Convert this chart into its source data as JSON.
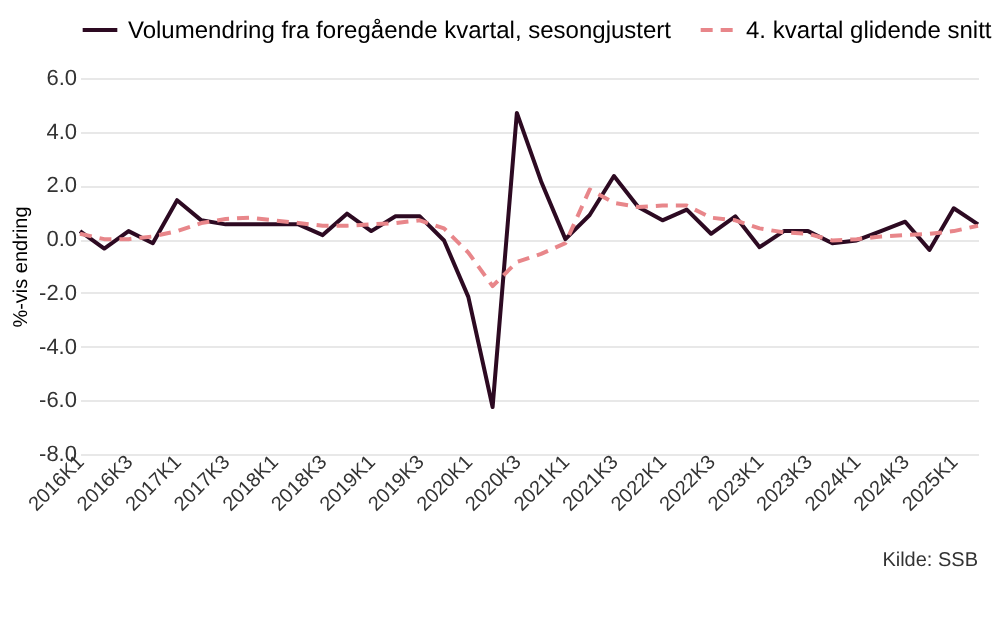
{
  "chart_data": {
    "type": "line",
    "ylabel": "%-vis endring",
    "categories": [
      "2016K1",
      null,
      "2016K3",
      null,
      "2017K1",
      null,
      "2017K3",
      null,
      "2018K1",
      null,
      "2018K3",
      null,
      "2019K1",
      null,
      "2019K3",
      null,
      "2020K1",
      null,
      "2020K3",
      null,
      "2021K1",
      null,
      "2021K3",
      null,
      "2022K1",
      null,
      "2022K3",
      null,
      "2023K1",
      null,
      "2023K3",
      null,
      "2024K1",
      null,
      "2024K3",
      null,
      "2025K1",
      null
    ],
    "series": [
      {
        "name": "Volumendring fra foregående kvartal, sesongjustert",
        "color": "#2d0a22",
        "line_style": "solid",
        "values": [
          0.3,
          -0.35,
          0.3,
          -0.15,
          1.45,
          0.7,
          0.55,
          0.55,
          0.55,
          0.55,
          0.15,
          0.95,
          0.3,
          0.85,
          0.85,
          -0.05,
          -2.15,
          -6.25,
          4.7,
          2.15,
          0.0,
          0.9,
          2.35,
          1.2,
          0.7,
          1.1,
          0.2,
          0.85,
          -0.3,
          0.3,
          0.3,
          -0.15,
          -0.05,
          0.3,
          0.65,
          -0.4,
          1.15,
          0.55
        ]
      },
      {
        "name": "4. kvartal glidende snitt",
        "color": "#e8868a",
        "line_style": "dashed",
        "values": [
          0.2,
          0.0,
          0.0,
          0.1,
          0.3,
          0.6,
          0.75,
          0.8,
          0.7,
          0.6,
          0.5,
          0.5,
          0.55,
          0.6,
          0.7,
          0.4,
          -0.5,
          -1.75,
          -0.85,
          -0.55,
          -0.15,
          1.85,
          1.35,
          1.2,
          1.25,
          1.25,
          0.8,
          0.7,
          0.4,
          0.25,
          0.2,
          -0.05,
          0.0,
          0.1,
          0.15,
          0.2,
          0.3,
          0.5
        ]
      }
    ],
    "ylim": [
      -8,
      6
    ],
    "yticks": [
      {
        "value": -8,
        "label": "-8.0"
      },
      {
        "value": -6,
        "label": "-6.0"
      },
      {
        "value": -4,
        "label": "-4.0"
      },
      {
        "value": -2,
        "label": "-2.0"
      },
      {
        "value": 0,
        "label": "0.0"
      },
      {
        "value": 2,
        "label": "2.0"
      },
      {
        "value": 4,
        "label": "4.0"
      },
      {
        "value": 6,
        "label": "6.0"
      }
    ],
    "grid": "y",
    "legend": "top",
    "marker": "none",
    "annotations": [
      "Kilde: SSB"
    ]
  }
}
